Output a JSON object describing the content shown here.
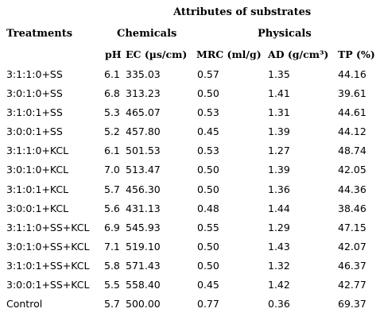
{
  "header": {
    "title": "Attributes of substrates",
    "group_treatments": "Treatments",
    "group_chemicals": "Chemicals",
    "group_physicals": "Physicals"
  },
  "columns": {
    "ph": "pH",
    "ec": "EC (µs/cm)",
    "mrc": "MRC (ml/g)",
    "ad": "AD (g/cm³)",
    "tp": "TP (%)"
  },
  "rows": [
    {
      "treatment": "3:1:1:0+SS",
      "ph": "6.1",
      "ec": "335.03",
      "mrc": "0.57",
      "ad": "1.35",
      "tp": "44.16"
    },
    {
      "treatment": "3:0:1:0+SS",
      "ph": "6.8",
      "ec": "313.23",
      "mrc": "0.50",
      "ad": "1.41",
      "tp": "39.61"
    },
    {
      "treatment": "3:1:0:1+SS",
      "ph": "5.3",
      "ec": "465.07",
      "mrc": "0.53",
      "ad": "1.31",
      "tp": "44.61"
    },
    {
      "treatment": "3:0:0:1+SS",
      "ph": "5.2",
      "ec": "457.80",
      "mrc": "0.45",
      "ad": "1.39",
      "tp": "44.12"
    },
    {
      "treatment": "3:1:1:0+KCL",
      "ph": "6.1",
      "ec": "501.53",
      "mrc": "0.53",
      "ad": "1.27",
      "tp": "48.74"
    },
    {
      "treatment": "3:0:1:0+KCL",
      "ph": "7.0",
      "ec": "513.47",
      "mrc": "0.50",
      "ad": "1.39",
      "tp": "42.05"
    },
    {
      "treatment": "3:1:0:1+KCL",
      "ph": "5.7",
      "ec": "456.30",
      "mrc": "0.50",
      "ad": "1.36",
      "tp": "44.36"
    },
    {
      "treatment": "3:0:0:1+KCL",
      "ph": "5.6",
      "ec": "431.13",
      "mrc": "0.48",
      "ad": "1.44",
      "tp": "38.46"
    },
    {
      "treatment": "3:1:1:0+SS+KCL",
      "ph": "6.9",
      "ec": "545.93",
      "mrc": "0.55",
      "ad": "1.29",
      "tp": "47.15"
    },
    {
      "treatment": "3:0:1:0+SS+KCL",
      "ph": "7.1",
      "ec": "519.10",
      "mrc": "0.50",
      "ad": "1.43",
      "tp": "42.07"
    },
    {
      "treatment": "3:1:0:1+SS+KCL",
      "ph": "5.8",
      "ec": "571.43",
      "mrc": "0.50",
      "ad": "1.32",
      "tp": "46.37"
    },
    {
      "treatment": "3:0:0:1+SS+KCL",
      "ph": "5.5",
      "ec": "558.40",
      "mrc": "0.45",
      "ad": "1.42",
      "tp": "42.77"
    },
    {
      "treatment": "Control",
      "ph": "5.7",
      "ec": "500.00",
      "mrc": "0.77",
      "ad": "0.36",
      "tp": "69.37"
    }
  ]
}
